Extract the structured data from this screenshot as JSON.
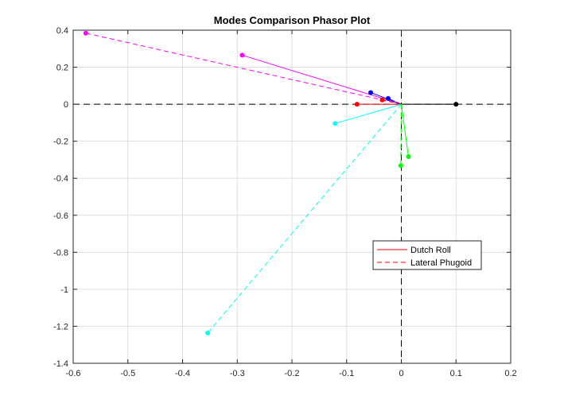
{
  "chart_data": {
    "type": "line",
    "title": "Modes Comparison Phasor Plot",
    "xlabel": "",
    "ylabel": "",
    "xlim": [
      -0.6,
      0.2
    ],
    "ylim": [
      -1.4,
      0.4
    ],
    "xticks": [
      -0.6,
      -0.5,
      -0.4,
      -0.3,
      -0.2,
      -0.1,
      0,
      0.1,
      0.2
    ],
    "xtick_labels": [
      "-0.6",
      "-0.5",
      "-0.4",
      "-0.3",
      "-0.2",
      "-0.1",
      "0",
      "0.1",
      "0.2"
    ],
    "yticks": [
      0.4,
      0.2,
      0,
      -0.2,
      -0.4,
      -0.6,
      -0.8,
      -1,
      -1.2,
      -1.4
    ],
    "ytick_labels": [
      "0.4",
      "0.2",
      "0",
      "-0.2",
      "-0.4",
      "-0.6",
      "-0.8",
      "-1",
      "-1.2",
      "-1.4"
    ],
    "grid": true,
    "axis_lines": {
      "x0": true,
      "y0": true,
      "style": "dashed",
      "color": "#000000"
    },
    "legend": {
      "location": "lower-right",
      "entries": [
        {
          "label": "Dutch Roll",
          "color": "#ff0000",
          "style": "solid"
        },
        {
          "label": "Lateral Phugoid",
          "color": "#ff0000",
          "style": "dashed"
        }
      ]
    },
    "series": [
      {
        "mode": "Dutch Roll",
        "style": "solid",
        "color": "#ff00ff",
        "x": [
          0,
          -0.291
        ],
        "y": [
          0,
          0.265
        ]
      },
      {
        "mode": "Dutch Roll",
        "style": "solid",
        "color": "#0000ff",
        "x": [
          0,
          -0.056
        ],
        "y": [
          0,
          0.063
        ]
      },
      {
        "mode": "Dutch Roll",
        "style": "solid",
        "color": "#ff0000",
        "x": [
          0,
          -0.081
        ],
        "y": [
          0,
          0.0
        ]
      },
      {
        "mode": "Dutch Roll",
        "style": "solid",
        "color": "#000000",
        "x": [
          0,
          0.1
        ],
        "y": [
          0,
          0.0
        ]
      },
      {
        "mode": "Dutch Roll",
        "style": "solid",
        "color": "#00ffff",
        "x": [
          0,
          -0.121
        ],
        "y": [
          0,
          -0.104
        ]
      },
      {
        "mode": "Dutch Roll",
        "style": "solid",
        "color": "#00ff00",
        "x": [
          0,
          0.013
        ],
        "y": [
          0,
          -0.283
        ]
      },
      {
        "mode": "Lateral Phugoid",
        "style": "dashed",
        "color": "#ff00ff",
        "x": [
          0,
          -0.577
        ],
        "y": [
          0,
          0.384
        ]
      },
      {
        "mode": "Lateral Phugoid",
        "style": "dashed",
        "color": "#0000ff",
        "x": [
          0,
          -0.024
        ],
        "y": [
          0,
          0.031
        ]
      },
      {
        "mode": "Lateral Phugoid",
        "style": "dashed",
        "color": "#ff0000",
        "x": [
          0,
          -0.035
        ],
        "y": [
          0,
          0.023
        ]
      },
      {
        "mode": "Lateral Phugoid",
        "style": "dashed",
        "color": "#00ffff",
        "x": [
          0,
          -0.354
        ],
        "y": [
          0,
          -1.236
        ]
      },
      {
        "mode": "Lateral Phugoid",
        "style": "dashed",
        "color": "#00ff00",
        "x": [
          0,
          -0.001
        ],
        "y": [
          0,
          -0.332
        ]
      }
    ]
  }
}
